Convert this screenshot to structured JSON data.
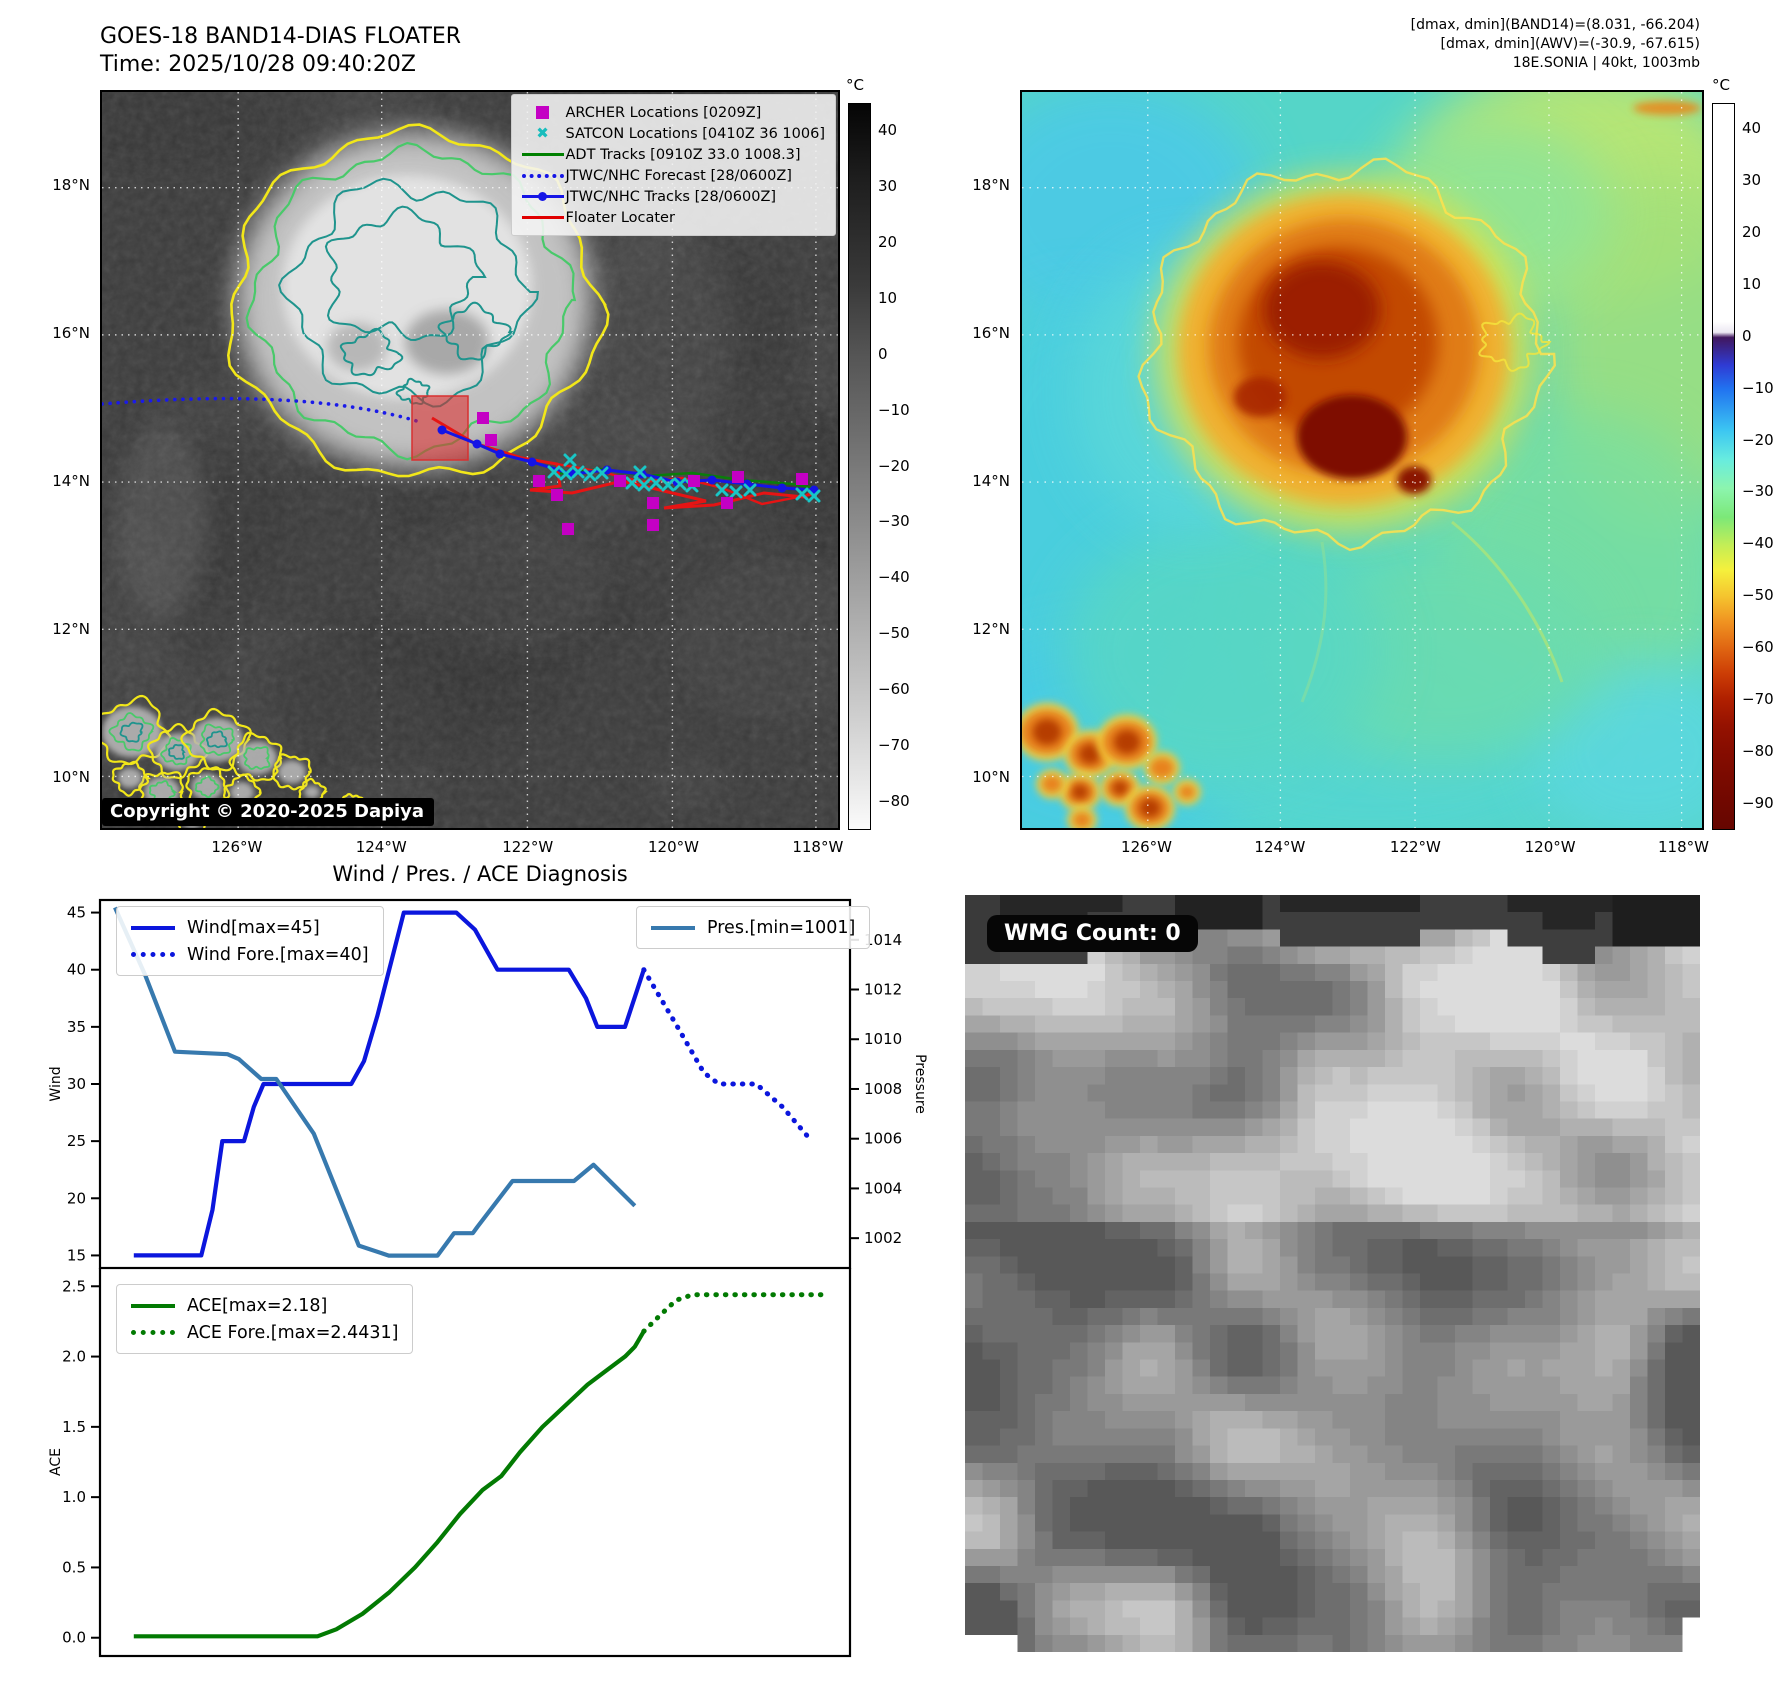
{
  "header": {
    "title_line1": "GOES-18 BAND14-DIAS FLOATER",
    "title_line2": "Time: 2025/10/28 09:40:20Z",
    "info_line1": "[dmax, dmin](BAND14)=(8.031, -66.204)",
    "info_line2": "[dmax, dmin](AWV)=(-30.9, -67.615)",
    "info_line3": "18E.SONIA | 40kt, 1003mb"
  },
  "band14_map": {
    "legend": [
      {
        "label": "ARCHER Locations [0209Z]",
        "marker": "square",
        "color": "#c400c4"
      },
      {
        "label": "SATCON Locations [0410Z 36 1006]",
        "marker": "x",
        "color": "#19bdbd"
      },
      {
        "label": "ADT Tracks [0910Z 33.0 1008.3]",
        "marker": "line",
        "color": "#008000"
      },
      {
        "label": "JTWC/NHC Forecast [28/0600Z]",
        "marker": "dotted-line",
        "color": "#1515e6"
      },
      {
        "label": "JTWC/NHC Tracks [28/0600Z]",
        "marker": "line-dot",
        "color": "#1515e6"
      },
      {
        "label": "Floater Locater",
        "marker": "line",
        "color": "#e00000"
      }
    ],
    "lat_ticks": [
      "18°N",
      "16°N",
      "14°N",
      "12°N",
      "10°N"
    ],
    "lon_ticks": [
      "126°W",
      "124°W",
      "122°W",
      "120°W",
      "118°W"
    ],
    "copyright": "Copyright © 2020-2025 Dapiya",
    "colorbar": {
      "unit": "°C",
      "ticks": [
        40,
        30,
        20,
        10,
        0,
        -10,
        -20,
        -30,
        -40,
        -50,
        -60,
        -70,
        -80
      ]
    }
  },
  "awv_map": {
    "lat_ticks": [
      "18°N",
      "16°N",
      "14°N",
      "12°N",
      "10°N"
    ],
    "lon_ticks": [
      "126°W",
      "124°W",
      "122°W",
      "120°W",
      "118°W"
    ],
    "colorbar": {
      "unit": "°C",
      "ticks": [
        40,
        30,
        20,
        10,
        0,
        -10,
        -20,
        -30,
        -40,
        -50,
        -60,
        -70,
        -80,
        -90
      ]
    }
  },
  "wmg_panel": {
    "count_label": "WMG Count: 0"
  },
  "chart_data": [
    {
      "type": "line",
      "title": "Wind / Pres. / ACE Diagnosis",
      "ylabel": "Wind",
      "y2label": "Pressure",
      "ylim": [
        13.9,
        46.1
      ],
      "yticks": [
        15,
        20,
        25,
        30,
        35,
        40,
        45
      ],
      "y2lim": [
        1000.8,
        1015.6
      ],
      "y2ticks": [
        1002,
        1004,
        1006,
        1008,
        1010,
        1012,
        1014
      ],
      "grid": false,
      "legend_note": "wind legends top-left, pressure legend top-right",
      "series": [
        {
          "name": "Wind[max=45]",
          "color": "#0b16dd",
          "style": "solid",
          "axis": "y1",
          "points": [
            [
              0.045,
              15
            ],
            [
              0.135,
              15
            ],
            [
              0.15,
              19
            ],
            [
              0.163,
              25
            ],
            [
              0.192,
              25
            ],
            [
              0.205,
              28
            ],
            [
              0.218,
              30
            ],
            [
              0.335,
              30
            ],
            [
              0.352,
              32
            ],
            [
              0.37,
              36
            ],
            [
              0.405,
              45
            ],
            [
              0.475,
              45
            ],
            [
              0.5,
              43.5
            ],
            [
              0.53,
              40
            ],
            [
              0.625,
              40
            ],
            [
              0.648,
              37.5
            ],
            [
              0.663,
              35
            ],
            [
              0.7,
              35
            ],
            [
              0.725,
              40
            ]
          ]
        },
        {
          "name": "Wind Fore.[max=40]",
          "color": "#0b16dd",
          "style": "dotted",
          "axis": "y1",
          "points": [
            [
              0.725,
              40
            ],
            [
              0.77,
              35
            ],
            [
              0.805,
              31
            ],
            [
              0.825,
              30
            ],
            [
              0.875,
              30
            ],
            [
              0.91,
              28
            ],
            [
              0.945,
              25.3
            ]
          ]
        },
        {
          "name": "Pres.[min=1001]",
          "color": "#3779ae",
          "style": "solid",
          "axis": "y2",
          "points": [
            [
              0.02,
              1015.3
            ],
            [
              0.06,
              1012.6
            ],
            [
              0.1,
              1009.5
            ],
            [
              0.17,
              1009.4
            ],
            [
              0.185,
              1009.2
            ],
            [
              0.215,
              1008.4
            ],
            [
              0.235,
              1008.4
            ],
            [
              0.285,
              1006.2
            ],
            [
              0.345,
              1001.7
            ],
            [
              0.385,
              1001.3
            ],
            [
              0.45,
              1001.3
            ],
            [
              0.472,
              1002.2
            ],
            [
              0.497,
              1002.2
            ],
            [
              0.503,
              1002.45
            ],
            [
              0.55,
              1004.3
            ],
            [
              0.632,
              1004.3
            ],
            [
              0.658,
              1004.95
            ],
            [
              0.713,
              1003.3
            ]
          ]
        }
      ]
    },
    {
      "type": "line",
      "title": "",
      "ylabel": "ACE",
      "ylim": [
        -0.13,
        2.63
      ],
      "yticks": [
        0.0,
        0.5,
        1.0,
        1.5,
        2.0,
        2.5
      ],
      "grid": false,
      "series": [
        {
          "name": "ACE[max=2.18]",
          "color": "#027a02",
          "style": "solid",
          "axis": "y1",
          "points": [
            [
              0.045,
              0.01
            ],
            [
              0.29,
              0.01
            ],
            [
              0.315,
              0.06
            ],
            [
              0.35,
              0.17
            ],
            [
              0.385,
              0.32
            ],
            [
              0.42,
              0.5
            ],
            [
              0.45,
              0.68
            ],
            [
              0.48,
              0.88
            ],
            [
              0.51,
              1.05
            ],
            [
              0.535,
              1.15
            ],
            [
              0.56,
              1.32
            ],
            [
              0.59,
              1.5
            ],
            [
              0.62,
              1.65
            ],
            [
              0.65,
              1.8
            ],
            [
              0.675,
              1.9
            ],
            [
              0.7,
              2.0
            ],
            [
              0.713,
              2.07
            ],
            [
              0.725,
              2.18
            ]
          ]
        },
        {
          "name": "ACE Fore.[max=2.4431]",
          "color": "#027a02",
          "style": "dotted",
          "axis": "y1",
          "points": [
            [
              0.725,
              2.18
            ],
            [
              0.748,
              2.3
            ],
            [
              0.768,
              2.4
            ],
            [
              0.79,
              2.44
            ],
            [
              0.965,
              2.44
            ]
          ]
        }
      ]
    }
  ]
}
